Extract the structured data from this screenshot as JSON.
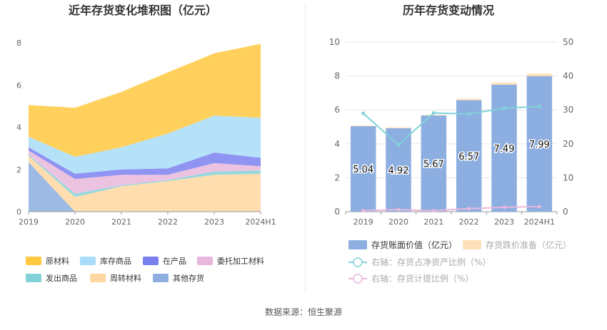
{
  "footer": {
    "source": "数据来源：恒生聚源"
  },
  "colors": {
    "raw": "#FFC940",
    "finished": "#A8DCF8",
    "wip": "#7B80F0",
    "outsourced": "#E8B8DC",
    "shipped": "#80D2D8",
    "turnover": "#FFD7A0",
    "other": "#8CAEE0",
    "book": "#8CAEE0",
    "provision": "#FFE0B8",
    "ratio_net": "#80D2D8",
    "ratio_prov": "#E8B8DC"
  },
  "chart_data": [
    {
      "type": "area",
      "title": "近年存货变化堆积图（亿元）",
      "x": [
        "2019",
        "2020",
        "2021",
        "2022",
        "2023",
        "2024H1"
      ],
      "ylim": [
        0,
        8
      ],
      "yticks": [
        0,
        2,
        4,
        6,
        8
      ],
      "grid": false,
      "legend_position": "bottom",
      "series": [
        {
          "name": "其他存货",
          "color_key": "other",
          "values": [
            2.35,
            0.0,
            0.0,
            0.0,
            0.0,
            0.0
          ]
        },
        {
          "name": "周转材料",
          "color_key": "turnover",
          "values": [
            0.3,
            0.7,
            1.2,
            1.45,
            1.75,
            1.8
          ]
        },
        {
          "name": "发出商品",
          "color_key": "shipped",
          "values": [
            0.05,
            0.15,
            0.05,
            0.05,
            0.15,
            0.15
          ]
        },
        {
          "name": "委托加工材料",
          "color_key": "outsourced",
          "values": [
            0.2,
            0.7,
            0.5,
            0.25,
            0.4,
            0.2
          ]
        },
        {
          "name": "在产品",
          "color_key": "wip",
          "values": [
            0.15,
            0.25,
            0.25,
            0.3,
            0.5,
            0.4
          ]
        },
        {
          "name": "库存商品",
          "color_key": "finished",
          "values": [
            0.5,
            0.8,
            1.05,
            1.65,
            1.75,
            1.9
          ]
        },
        {
          "name": "原材料",
          "color_key": "raw",
          "values": [
            1.5,
            2.32,
            2.62,
            2.9,
            2.95,
            3.5
          ]
        }
      ],
      "legend_order": [
        "原材料",
        "库存商品",
        "在产品",
        "委托加工材料",
        "发出商品",
        "周转材料",
        "其他存货"
      ]
    },
    {
      "type": "bar",
      "title": "历年存货变动情况",
      "x": [
        "2019",
        "2020",
        "2021",
        "2022",
        "2023",
        "2024H1"
      ],
      "ylim": [
        0,
        10
      ],
      "yticks": [
        0,
        2,
        4,
        6,
        8,
        10
      ],
      "y2lim": [
        0,
        50
      ],
      "y2ticks": [
        0,
        10,
        20,
        30,
        40,
        50
      ],
      "grid": true,
      "legend_position": "bottom",
      "series": [
        {
          "name": "存货账面价值（亿元）",
          "kind": "bar",
          "color_key": "book",
          "values": [
            5.04,
            4.92,
            5.67,
            6.57,
            7.49,
            7.99
          ],
          "labels": [
            "5.04",
            "4.92",
            "5.67",
            "6.57",
            "7.49",
            "7.99"
          ]
        },
        {
          "name": "存货跌价准备（亿元）",
          "kind": "bar",
          "color_key": "provision",
          "values": [
            0.03,
            0.05,
            0.03,
            0.08,
            0.12,
            0.15
          ]
        },
        {
          "name": "右轴：存货占净资产比例（%）",
          "kind": "line",
          "axis": "right",
          "color_key": "ratio_net",
          "values": [
            29.0,
            19.7,
            29.1,
            28.8,
            30.5,
            31.0
          ]
        },
        {
          "name": "右轴：存货计提比例（%）",
          "kind": "line",
          "axis": "right",
          "color_key": "ratio_prov",
          "values": [
            0.3,
            0.6,
            0.3,
            0.9,
            1.3,
            1.5
          ]
        }
      ]
    }
  ]
}
